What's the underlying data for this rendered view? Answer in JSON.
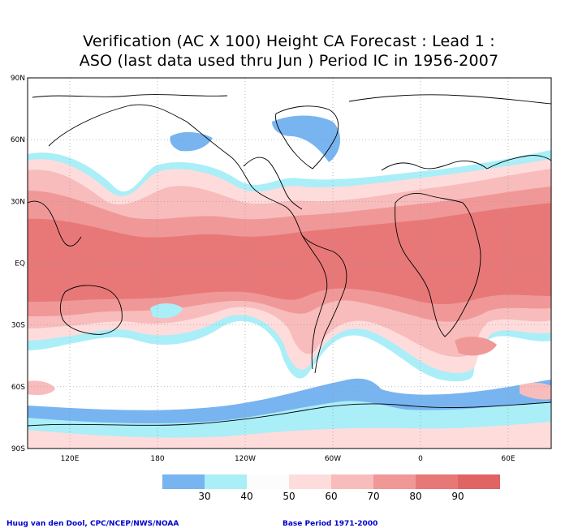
{
  "title": {
    "line1": "Verification (AC X 100) Height CA Forecast : Lead 1 :",
    "line2": "ASO (last data used thru Jun ) Period IC in 1956-2007"
  },
  "map": {
    "lat_labels": [
      "90N",
      "60N",
      "30N",
      "EQ",
      "30S",
      "60S",
      "90S"
    ],
    "lon_labels": [
      "120E",
      "180",
      "120W",
      "60W",
      "0",
      "60E"
    ]
  },
  "legend": {
    "levels": [
      "30",
      "40",
      "50",
      "60",
      "70",
      "80",
      "90"
    ],
    "colors": [
      "#78b4f0",
      "#aaeef8",
      "#fcfcfc",
      "#ffdcdc",
      "#f8bcbc",
      "#f09898",
      "#e87878",
      "#e06464"
    ]
  },
  "footer": {
    "left": "Huug van den Dool, CPC/NCEP/NWS/NOAA",
    "right": "Base Period 1971-2000"
  },
  "palette": {
    "blue": "#78b4f0",
    "cyan": "#aaeef8",
    "pink": "#ffdcdc",
    "rose": "#f8bcbc",
    "salmon": "#f09898",
    "red": "#e87878",
    "coast": "#000000"
  }
}
